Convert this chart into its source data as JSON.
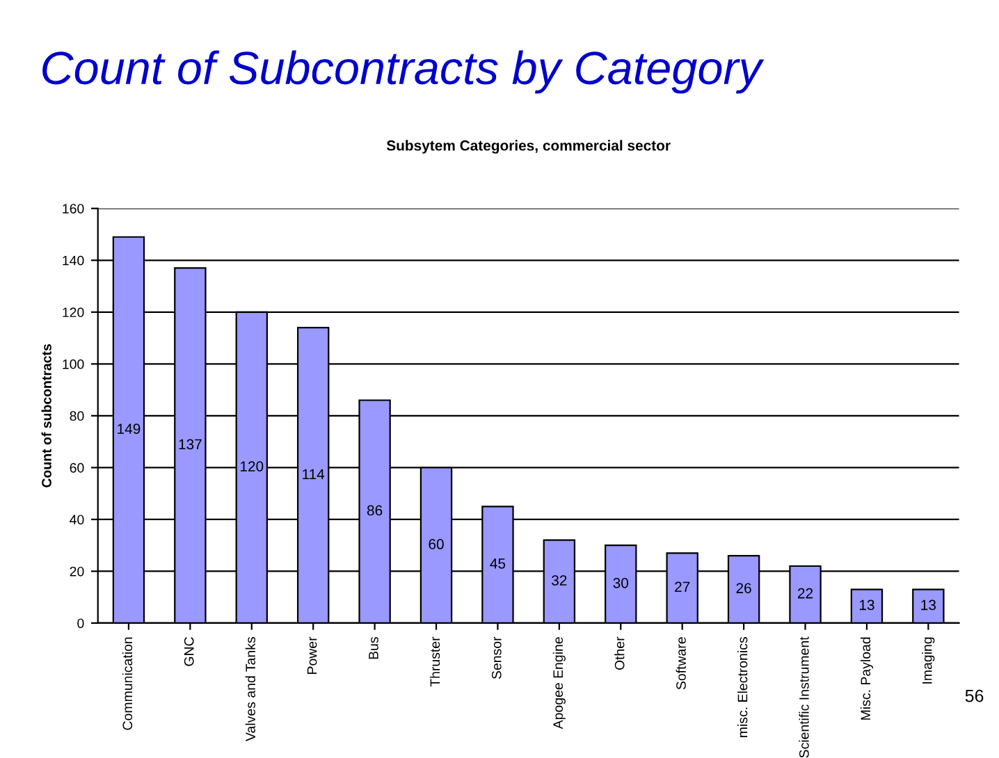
{
  "chart_data": {
    "type": "bar",
    "title": "Count of Subcontracts by Category",
    "subtitle": "Subsytem Categories, commercial sector",
    "ylabel": "Count of subcontracts",
    "categories": [
      "Communication",
      "GNC",
      "Valves and Tanks",
      "Power",
      "Bus",
      "Thruster",
      "Sensor",
      "Apogee Engine",
      "Other",
      "Software",
      "misc. Electronics",
      "Scientific Instrument",
      "Misc. Payload",
      "Imaging"
    ],
    "values": [
      149,
      137,
      120,
      114,
      86,
      60,
      45,
      32,
      30,
      27,
      26,
      22,
      13,
      13
    ],
    "color": "#9999ff",
    "ylim": [
      0,
      160
    ],
    "yticks": [
      0,
      20,
      40,
      60,
      80,
      100,
      120,
      140,
      160
    ],
    "grid": "y",
    "data_labels": true,
    "annotations": [
      "56"
    ]
  }
}
